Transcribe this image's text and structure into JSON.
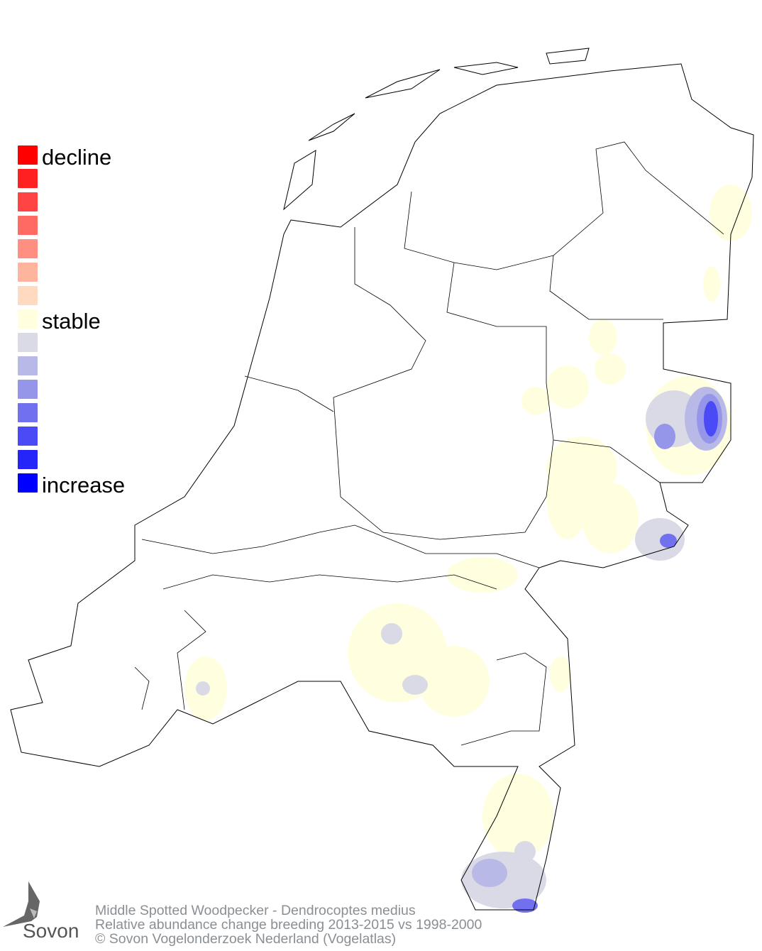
{
  "legend": {
    "labels": {
      "decline": "decline",
      "stable": "stable",
      "increase": "increase"
    },
    "colors": [
      "#ff0000",
      "#ff2121",
      "#ff4444",
      "#ff6a62",
      "#ff8f80",
      "#ffb49e",
      "#ffd9c0",
      "#ffffe0",
      "#dadae6",
      "#b9b9e8",
      "#9595ea",
      "#7171f0",
      "#4a4af6",
      "#2525fa",
      "#0000ff"
    ]
  },
  "footer": {
    "line1": "Middle Spotted Woodpecker - Dendrocoptes medius",
    "line2": "Relative abundance change breeding 2013-2015 vs 1998-2000",
    "line3": "© Sovon Vogelonderzoek Nederland (Vogelatlas)"
  },
  "logo": {
    "text": "Sovon"
  }
}
